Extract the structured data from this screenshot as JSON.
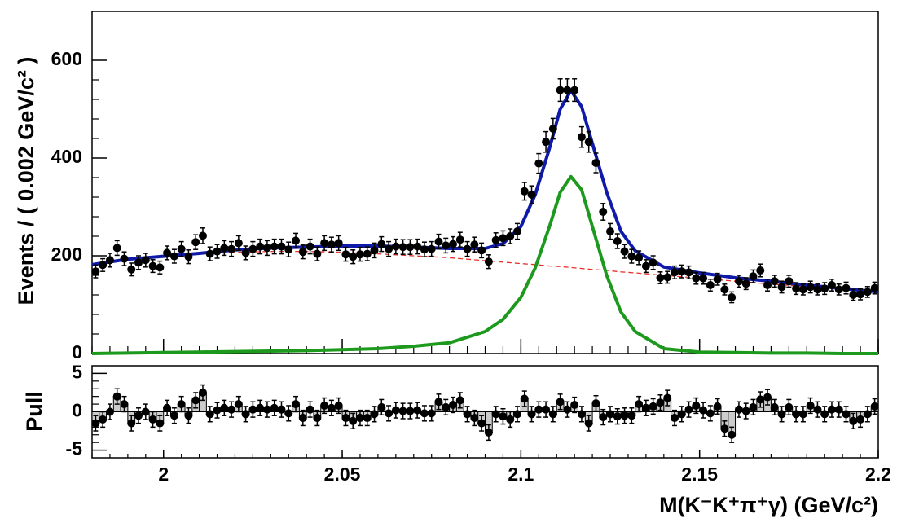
{
  "chart_data": [
    {
      "type": "scatter",
      "ylabel": "Events / ( 0.002 GeV/c² )",
      "xlim": [
        1.98,
        2.2
      ],
      "ylim": [
        0,
        700
      ],
      "yticks": [
        0,
        200,
        400,
        600
      ],
      "color": "#000000",
      "x": [
        1.981,
        1.983,
        1.985,
        1.987,
        1.989,
        1.991,
        1.993,
        1.995,
        1.997,
        1.999,
        2.001,
        2.003,
        2.005,
        2.007,
        2.009,
        2.011,
        2.013,
        2.015,
        2.017,
        2.019,
        2.021,
        2.023,
        2.025,
        2.027,
        2.029,
        2.031,
        2.033,
        2.035,
        2.037,
        2.039,
        2.041,
        2.043,
        2.045,
        2.047,
        2.049,
        2.051,
        2.053,
        2.055,
        2.057,
        2.059,
        2.061,
        2.063,
        2.065,
        2.067,
        2.069,
        2.071,
        2.073,
        2.075,
        2.077,
        2.079,
        2.081,
        2.083,
        2.085,
        2.087,
        2.089,
        2.091,
        2.093,
        2.095,
        2.097,
        2.099,
        2.101,
        2.103,
        2.105,
        2.107,
        2.109,
        2.111,
        2.113,
        2.115,
        2.117,
        2.119,
        2.121,
        2.123,
        2.125,
        2.127,
        2.129,
        2.131,
        2.133,
        2.135,
        2.137,
        2.139,
        2.141,
        2.143,
        2.145,
        2.147,
        2.149,
        2.151,
        2.153,
        2.155,
        2.157,
        2.159,
        2.161,
        2.163,
        2.165,
        2.167,
        2.169,
        2.171,
        2.173,
        2.175,
        2.177,
        2.179,
        2.181,
        2.183,
        2.185,
        2.187,
        2.189,
        2.191,
        2.193,
        2.195,
        2.197,
        2.199
      ],
      "values": [
        168,
        181,
        191,
        216,
        194,
        172,
        186,
        191,
        179,
        176,
        206,
        199,
        214,
        198,
        228,
        241,
        204,
        209,
        216,
        214,
        226,
        206,
        214,
        219,
        216,
        219,
        219,
        213,
        231,
        208,
        219,
        204,
        226,
        223,
        226,
        203,
        198,
        203,
        204,
        211,
        224,
        214,
        219,
        218,
        218,
        219,
        213,
        214,
        229,
        221,
        224,
        233,
        214,
        223,
        211,
        188,
        232,
        236,
        240,
        250,
        332,
        325,
        389,
        433,
        460,
        539,
        539,
        539,
        443,
        433,
        390,
        290,
        250,
        230,
        209,
        199,
        196,
        179,
        186,
        155,
        156,
        166,
        168,
        166,
        154,
        154,
        140,
        152,
        131,
        115,
        148,
        143,
        158,
        170,
        140,
        148,
        136,
        148,
        133,
        131,
        136,
        131,
        133,
        140,
        131,
        134,
        120,
        121,
        126,
        134
      ],
      "errors": [
        13,
        13,
        14,
        15,
        14,
        13,
        14,
        14,
        13,
        13,
        14,
        14,
        15,
        14,
        15,
        16,
        14,
        14,
        15,
        15,
        15,
        14,
        15,
        15,
        15,
        15,
        15,
        15,
        15,
        14,
        15,
        14,
        15,
        15,
        15,
        14,
        14,
        14,
        14,
        15,
        15,
        15,
        15,
        15,
        15,
        15,
        15,
        15,
        15,
        15,
        15,
        15,
        15,
        15,
        15,
        14,
        15,
        15,
        15,
        16,
        18,
        18,
        20,
        21,
        21,
        23,
        23,
        23,
        21,
        21,
        20,
        17,
        16,
        15,
        14,
        14,
        14,
        13,
        14,
        12,
        12,
        13,
        13,
        13,
        12,
        12,
        12,
        12,
        11,
        11,
        12,
        12,
        13,
        13,
        12,
        12,
        12,
        12,
        12,
        11,
        12,
        11,
        12,
        12,
        11,
        12,
        11,
        11,
        11,
        12
      ],
      "curve_x": [
        1.98,
        1.99,
        2.0,
        2.01,
        2.02,
        2.03,
        2.04,
        2.05,
        2.06,
        2.07,
        2.08,
        2.09,
        2.095,
        2.1,
        2.104,
        2.108,
        2.111,
        2.114,
        2.117,
        2.12,
        2.124,
        2.128,
        2.132,
        2.14,
        2.15,
        2.16,
        2.17,
        2.18,
        2.19,
        2.2
      ],
      "curves": [
        {
          "color": "#e8312a",
          "dashed": true,
          "values": [
            183,
            192,
            199,
            204,
            207,
            209,
            209,
            207,
            204,
            200,
            196,
            190,
            187,
            184,
            182,
            179,
            178,
            176,
            174,
            172,
            170,
            167,
            165,
            160,
            154,
            148,
            142,
            137,
            131,
            126
          ]
        },
        {
          "color": "#1d9a1d",
          "dashed": false,
          "values": [
            0,
            1,
            2,
            3,
            4,
            5,
            6,
            8,
            10,
            15,
            22,
            45,
            70,
            115,
            175,
            260,
            330,
            362,
            335,
            260,
            160,
            85,
            45,
            10,
            3,
            2,
            1,
            1,
            0,
            0
          ]
        },
        {
          "color": "#0f1aa8",
          "dashed": false,
          "values": [
            182,
            193,
            199,
            205,
            212,
            216,
            218,
            220,
            220,
            218,
            215,
            215,
            225,
            260,
            325,
            420,
            500,
            538,
            505,
            430,
            330,
            250,
            210,
            177,
            165,
            155,
            148,
            140,
            133,
            126
          ]
        }
      ]
    },
    {
      "type": "pull",
      "ylabel": "Pull",
      "xlabel": "M(K⁻K⁺π⁺γ) (GeV/c²)",
      "xlim": [
        1.98,
        2.2
      ],
      "xticks": [
        2,
        2.05,
        2.1,
        2.15,
        2.2
      ],
      "ylim": [
        -6,
        6
      ],
      "yticks": [
        -5,
        0,
        5
      ],
      "bar_color": "#cccccc",
      "error": 1,
      "values": [
        -1.5,
        -1,
        0,
        2,
        1,
        -1.5,
        -0.5,
        0,
        -1,
        -1.5,
        0.5,
        -0.5,
        1,
        -0.5,
        1.5,
        2.5,
        -0.3,
        0.2,
        0.5,
        0.3,
        1,
        -0.3,
        0.3,
        0.5,
        0.3,
        0.5,
        0.3,
        -0.2,
        1,
        -0.8,
        0.3,
        -0.8,
        0.8,
        0.5,
        0.8,
        -0.8,
        -1.2,
        -0.8,
        -0.8,
        -0.3,
        0.6,
        -0.2,
        0.2,
        0.1,
        0.1,
        0.2,
        -0.2,
        -0.2,
        1.3,
        0.6,
        0.9,
        1.5,
        -0.3,
        -0.8,
        -1.5,
        -2.7,
        -0.3,
        -0.6,
        -1,
        -0.3,
        1.7,
        -0.3,
        0.3,
        0.3,
        -0.3,
        1.3,
        0.3,
        0.9,
        -0.3,
        -1.5,
        1.1,
        -0.7,
        -0.3,
        -0.6,
        -0.5,
        -0.5,
        1,
        0.5,
        0.7,
        1.2,
        1.8,
        -0.8,
        -0.3,
        0.3,
        0.8,
        0.2,
        -0.2,
        0.7,
        -2.2,
        -3,
        0.3,
        0.1,
        0.6,
        1.6,
        1.9,
        0.6,
        -0.3,
        0.6,
        -0.3,
        -0.3,
        0.8,
        0.3,
        -0.3,
        0.3,
        0.3,
        -0.3,
        -1.2,
        -1,
        -0.3,
        0.7
      ]
    }
  ]
}
